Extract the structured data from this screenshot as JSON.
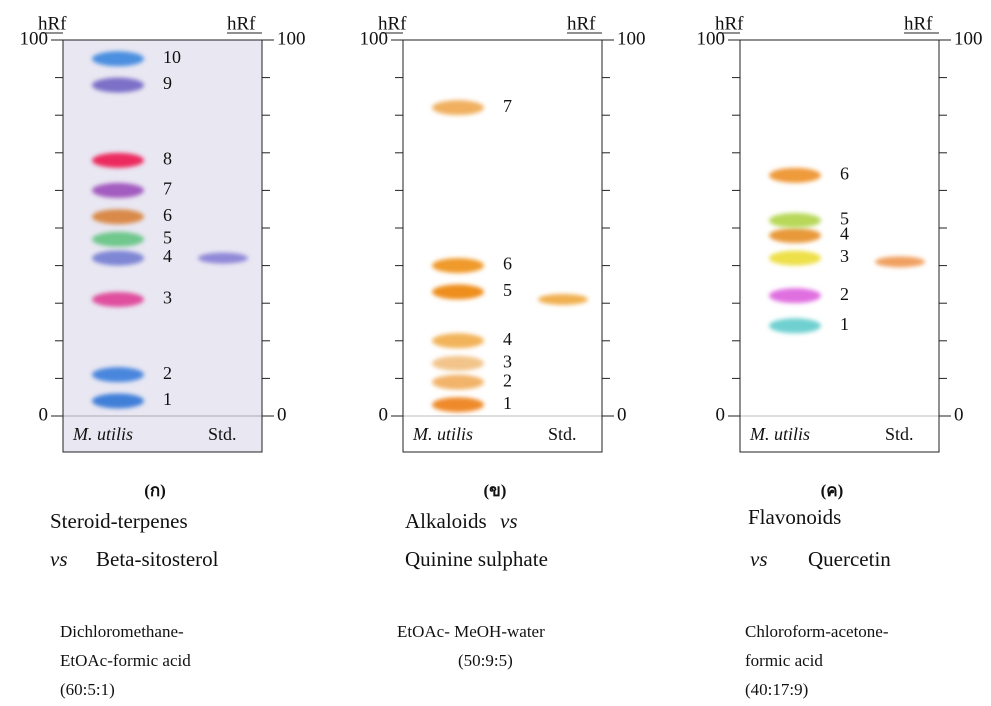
{
  "panels": [
    {
      "letter": "(ก)",
      "axis_title": "hRf",
      "ylim": [
        0,
        100
      ],
      "yticks": [
        0,
        100
      ],
      "minor_ticks": [
        10,
        20,
        30,
        40,
        50,
        60,
        70,
        80,
        90
      ],
      "lanes": [
        "M. utilis",
        "Std."
      ],
      "background": "#e9e7f2",
      "spots": [
        {
          "label": "1",
          "hrf": 4,
          "color": "#3f7fd8"
        },
        {
          "label": "2",
          "hrf": 11,
          "color": "#4a86dd"
        },
        {
          "label": "3",
          "hrf": 31,
          "color": "#e0509e"
        },
        {
          "label": "4",
          "hrf": 42,
          "color": "#7f86d4"
        },
        {
          "label": "5",
          "hrf": 47,
          "color": "#6fc88c"
        },
        {
          "label": "6",
          "hrf": 53,
          "color": "#d98a4a"
        },
        {
          "label": "7",
          "hrf": 60,
          "color": "#a35cbf"
        },
        {
          "label": "8",
          "hrf": 68,
          "color": "#ec2c5e"
        },
        {
          "label": "9",
          "hrf": 88,
          "color": "#7b6fc8"
        },
        {
          "label": "10",
          "hrf": 95,
          "color": "#4c8fe0"
        }
      ],
      "std": {
        "hrf": 42,
        "color": "#8f88d8"
      },
      "compound_class": "Steroid-terpenes",
      "connector": "vs",
      "standard": "Beta-sitosterol",
      "solvent": [
        "Dichloromethane-",
        "EtOAc-formic acid",
        "(60:5:1)"
      ]
    },
    {
      "letter": "(ข)",
      "axis_title": "hRf",
      "ylim": [
        0,
        100
      ],
      "yticks": [
        0,
        100
      ],
      "minor_ticks": [
        10,
        20,
        30,
        40,
        50,
        60,
        70,
        80,
        90
      ],
      "lanes": [
        "M. utilis",
        "Std."
      ],
      "background": "#ffffff",
      "spots": [
        {
          "label": "1",
          "hrf": 3,
          "color": "#ef8a2a"
        },
        {
          "label": "2",
          "hrf": 9,
          "color": "#f2b46a"
        },
        {
          "label": "3",
          "hrf": 14,
          "color": "#f2c48a"
        },
        {
          "label": "4",
          "hrf": 20,
          "color": "#f2b45a"
        },
        {
          "label": "5",
          "hrf": 33,
          "color": "#ee8e1c"
        },
        {
          "label": "6",
          "hrf": 40,
          "color": "#ef9a2a"
        },
        {
          "label": "7",
          "hrf": 82,
          "color": "#f0b060"
        }
      ],
      "std": {
        "hrf": 31,
        "color": "#f0b050"
      },
      "compound_class": "Alkaloids",
      "connector": "vs",
      "standard": "Quinine sulphate",
      "solvent": [
        "EtOAc- MeOH-water",
        "(50:9:5)"
      ]
    },
    {
      "letter": "(ค)",
      "axis_title": "hRf",
      "ylim": [
        0,
        100
      ],
      "yticks": [
        0,
        100
      ],
      "minor_ticks": [
        10,
        20,
        30,
        40,
        50,
        60,
        70,
        80,
        90
      ],
      "lanes": [
        "M. utilis",
        "Std."
      ],
      "background": "#ffffff",
      "spots": [
        {
          "label": "1",
          "hrf": 24,
          "color": "#6fd0d0"
        },
        {
          "label": "2",
          "hrf": 32,
          "color": "#e070e0"
        },
        {
          "label": "3",
          "hrf": 42,
          "color": "#eee04a"
        },
        {
          "label": "4",
          "hrf": 48,
          "color": "#e89a3a"
        },
        {
          "label": "5",
          "hrf": 52,
          "color": "#b8d85a"
        },
        {
          "label": "6",
          "hrf": 64,
          "color": "#ef9a3a"
        }
      ],
      "std": {
        "hrf": 41,
        "color": "#f0a060"
      },
      "compound_class": "Flavonoids",
      "connector": "vs",
      "standard": "Quercetin",
      "solvent": [
        "Chloroform-acetone-",
        "formic acid",
        "(40:17:9)"
      ]
    }
  ]
}
